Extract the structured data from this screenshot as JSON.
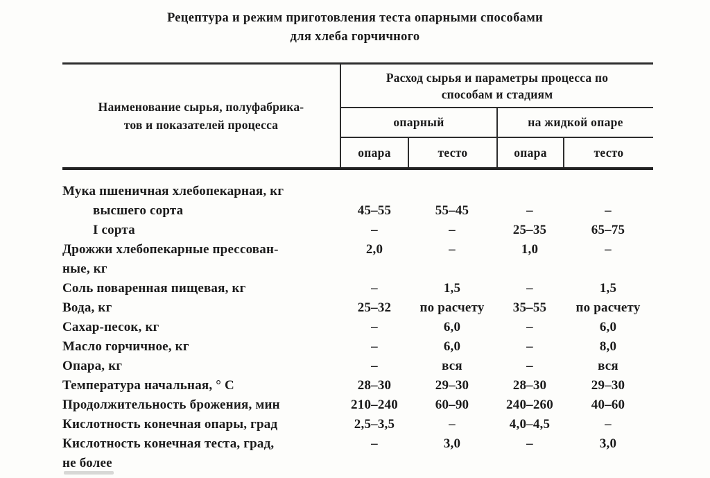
{
  "title": {
    "line1": "Рецептура и режим приготовления теста опарными способами",
    "line2": "для хлеба горчичного"
  },
  "table": {
    "header": {
      "col_name_line1": "Наименование сырья, полуфабрика-",
      "col_name_line2": "тов и показателей процесса",
      "group_title": "Расход сырья и параметры процесса по способам и стадиям",
      "method1": "опарный",
      "method2": "на жидкой опаре",
      "sub1": "опара",
      "sub2": "тесто",
      "sub3": "опара",
      "sub4": "тесто"
    },
    "rows": [
      {
        "label": "Мука пшеничная хлебопекарная, кг",
        "indent": false,
        "values": [
          "",
          "",
          "",
          ""
        ]
      },
      {
        "label": "высшего сорта",
        "indent": true,
        "values": [
          "45–55",
          "55–45",
          "–",
          "–"
        ]
      },
      {
        "label": "I сорта",
        "indent": true,
        "values": [
          "–",
          "–",
          "25–35",
          "65–75"
        ]
      },
      {
        "label": "Дрожжи хлебопекарные прессован-",
        "indent": false,
        "values": [
          "2,0",
          "–",
          "1,0",
          "–"
        ]
      },
      {
        "label": "ные, кг",
        "indent": false,
        "values": [
          "",
          "",
          "",
          ""
        ]
      },
      {
        "label": "Соль поваренная пищевая, кг",
        "indent": false,
        "values": [
          "–",
          "1,5",
          "–",
          "1,5"
        ]
      },
      {
        "label": "Вода, кг",
        "indent": false,
        "values": [
          "25–32",
          "по расчету",
          "35–55",
          "по расчету"
        ]
      },
      {
        "label": "Сахар-песок, кг",
        "indent": false,
        "values": [
          "–",
          "6,0",
          "–",
          "6,0"
        ]
      },
      {
        "label": "Масло горчичное, кг",
        "indent": false,
        "values": [
          "–",
          "6,0",
          "–",
          "8,0"
        ]
      },
      {
        "label": "Опара, кг",
        "indent": false,
        "values": [
          "–",
          "вся",
          "–",
          "вся"
        ]
      },
      {
        "label": "Температура начальная, ° С",
        "indent": false,
        "values": [
          "28–30",
          "29–30",
          "28–30",
          "29–30"
        ]
      },
      {
        "label": "Продолжительность брожения, мин",
        "indent": false,
        "values": [
          "210–240",
          "60–90",
          "240–260",
          "40–60"
        ]
      },
      {
        "label": "Кислотность конечная опары, град",
        "indent": false,
        "values": [
          "2,5–3,5",
          "–",
          "4,0–4,5",
          "–"
        ]
      },
      {
        "label": "Кислотность конечная теста,  град,",
        "indent": false,
        "values": [
          "–",
          "3,0",
          "–",
          "3,0"
        ]
      },
      {
        "label": "не более",
        "indent": false,
        "values": [
          "",
          "",
          "",
          ""
        ]
      }
    ]
  },
  "colors": {
    "ink": "#1b1b1b",
    "rule": "#2d2d2d",
    "paper": "#fdfdfb"
  }
}
